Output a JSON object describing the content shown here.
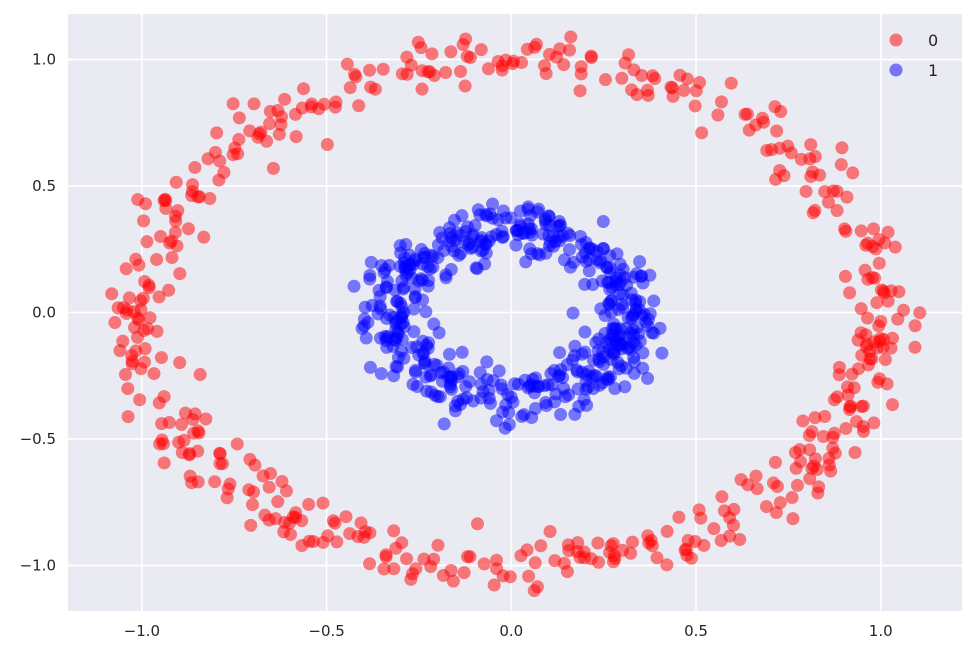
{
  "chart_data": {
    "type": "scatter",
    "title": "",
    "xlabel": "",
    "ylabel": "",
    "xlim": [
      -1.2,
      1.22
    ],
    "ylim": [
      -1.18,
      1.18
    ],
    "xticks": [
      -1.0,
      -0.5,
      0.0,
      0.5,
      1.0
    ],
    "yticks": [
      -1.0,
      -0.5,
      0.0,
      0.5,
      1.0
    ],
    "xtick_labels": [
      "−1.0",
      "−0.5",
      "0.0",
      "0.5",
      "1.0"
    ],
    "ytick_labels": [
      "−1.0",
      "−0.5",
      "0.0",
      "0.5",
      "1.0"
    ],
    "grid": true,
    "background": "#eaeaf2",
    "legend": {
      "position": "top-right"
    },
    "series": [
      {
        "name": "0",
        "color": "#ff0000",
        "opacity": 0.5,
        "shape": "ring",
        "radius_mean": 1.0,
        "radius_noise": 0.05,
        "approx_count": 500
      },
      {
        "name": "1",
        "color": "#0000ff",
        "opacity": 0.5,
        "shape": "ring",
        "radius_mean": 0.32,
        "radius_noise": 0.05,
        "approx_count": 500
      }
    ]
  }
}
